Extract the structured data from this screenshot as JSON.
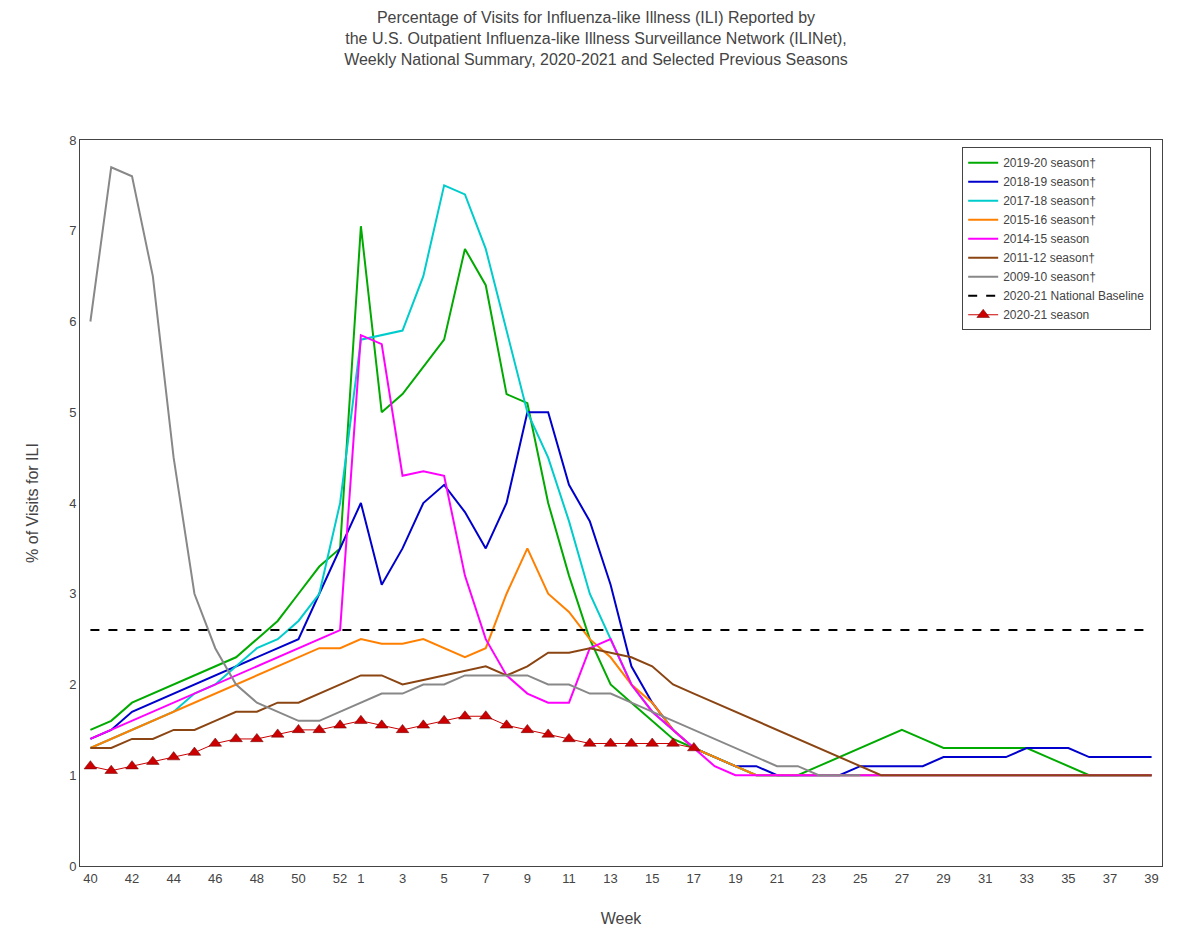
{
  "chart_data": {
    "type": "line",
    "title": "Percentage of Visits for Influenza-like Illness (ILI) Reported by\nthe U.S. Outpatient Influenza-like Illness Surveillance Network (ILINet),\nWeekly National Summary, 2020-2021 and Selected Previous Seasons",
    "x_label": "Week",
    "y_label": "% of Visits for ILI",
    "categories": [
      40,
      null,
      42,
      null,
      44,
      null,
      46,
      null,
      48,
      null,
      50,
      null,
      52,
      1,
      null,
      3,
      null,
      5,
      null,
      7,
      null,
      9,
      null,
      11,
      null,
      13,
      null,
      15,
      null,
      17,
      null,
      19,
      null,
      21,
      null,
      23,
      null,
      25,
      null,
      27,
      null,
      29,
      null,
      31,
      null,
      33,
      null,
      35,
      null,
      37,
      null,
      39
    ],
    "ylim": [
      0,
      8
    ],
    "yticks": [
      0,
      1,
      2,
      3,
      4,
      5,
      6,
      7,
      8
    ],
    "grid": false,
    "legend": "upper right",
    "series": [
      {
        "name": "2019-20 season†",
        "color": "#00AA00",
        "values": [
          1.5,
          1.6,
          1.8,
          1.9,
          2.0,
          2.1,
          2.2,
          2.3,
          2.5,
          2.7,
          3.0,
          3.3,
          3.5,
          7.05,
          5.0,
          5.2,
          5.5,
          5.8,
          6.8,
          6.4,
          5.2,
          5.1,
          4.0,
          3.2,
          2.5,
          2.0,
          1.8,
          1.6,
          1.4,
          1.3,
          1.2,
          1.1,
          1.0,
          1.0,
          1.0,
          1.1,
          1.2,
          1.3,
          1.4,
          1.5,
          1.4,
          1.3,
          1.3,
          1.3,
          1.3,
          1.3,
          1.2,
          1.1,
          1.0,
          1.0,
          1.0,
          1.0
        ]
      },
      {
        "name": "2018-19 season†",
        "color": "#0000CC",
        "values": [
          1.4,
          1.5,
          1.7,
          1.8,
          1.9,
          2.0,
          2.1,
          2.2,
          2.3,
          2.4,
          2.5,
          3.0,
          3.5,
          4.0,
          3.1,
          3.5,
          4.0,
          4.2,
          3.9,
          3.5,
          4.0,
          5.0,
          5.0,
          4.2,
          3.8,
          3.1,
          2.2,
          1.8,
          1.5,
          1.3,
          1.2,
          1.1,
          1.1,
          1.0,
          1.0,
          1.0,
          1.0,
          1.1,
          1.1,
          1.1,
          1.1,
          1.2,
          1.2,
          1.2,
          1.2,
          1.3,
          1.3,
          1.3,
          1.2,
          1.2,
          1.2,
          1.2
        ]
      },
      {
        "name": "2017-18 season†",
        "color": "#00CCCC",
        "values": [
          1.3,
          1.4,
          1.5,
          1.6,
          1.7,
          1.9,
          2.0,
          2.2,
          2.4,
          2.5,
          2.7,
          3.0,
          4.0,
          5.8,
          5.85,
          5.9,
          6.5,
          7.5,
          7.4,
          6.8,
          5.9,
          5.0,
          4.5,
          3.8,
          3.0,
          2.5,
          2.0,
          1.7,
          1.5,
          1.3,
          1.2,
          1.1,
          1.0,
          1.0,
          1.0,
          1.0,
          1.0,
          1.0,
          1.0,
          1.0,
          1.0,
          1.0,
          1.0,
          1.0,
          1.0,
          1.0,
          1.0,
          1.0,
          1.0,
          1.0,
          1.0,
          1.0
        ]
      },
      {
        "name": "2015-16 season†",
        "color": "#FF8000",
        "values": [
          1.3,
          1.4,
          1.5,
          1.6,
          1.7,
          1.8,
          1.9,
          2.0,
          2.1,
          2.2,
          2.3,
          2.4,
          2.4,
          2.5,
          2.45,
          2.45,
          2.5,
          2.4,
          2.3,
          2.4,
          3.0,
          3.5,
          3.0,
          2.8,
          2.5,
          2.3,
          2.0,
          1.8,
          1.5,
          1.3,
          1.2,
          1.1,
          1.0,
          1.0,
          1.0,
          1.0,
          1.0,
          1.0,
          1.0,
          1.0,
          1.0,
          1.0,
          1.0,
          1.0,
          1.0,
          1.0,
          1.0,
          1.0,
          1.0,
          1.0,
          1.0,
          1.0
        ]
      },
      {
        "name": "2014-15 season",
        "color": "#FF00FF",
        "values": [
          1.4,
          1.5,
          1.6,
          1.7,
          1.8,
          1.9,
          2.0,
          2.1,
          2.2,
          2.3,
          2.4,
          2.5,
          2.6,
          5.85,
          5.75,
          4.3,
          4.35,
          4.3,
          3.2,
          2.5,
          2.1,
          1.9,
          1.8,
          1.8,
          2.4,
          2.5,
          2.0,
          1.7,
          1.5,
          1.3,
          1.1,
          1.0,
          1.0,
          1.0,
          1.0,
          1.0,
          1.0,
          1.0,
          1.0,
          1.0,
          1.0,
          1.0,
          1.0,
          1.0,
          1.0,
          1.0,
          1.0,
          1.0,
          1.0,
          1.0,
          1.0,
          1.0
        ]
      },
      {
        "name": "2011-12 season†",
        "color": "#8B4513",
        "values": [
          1.3,
          1.3,
          1.4,
          1.4,
          1.5,
          1.5,
          1.6,
          1.7,
          1.7,
          1.8,
          1.8,
          1.9,
          2.0,
          2.1,
          2.1,
          2.0,
          2.05,
          2.1,
          2.15,
          2.2,
          2.1,
          2.2,
          2.35,
          2.35,
          2.4,
          2.35,
          2.3,
          2.2,
          2.0,
          1.9,
          1.8,
          1.7,
          1.6,
          1.5,
          1.4,
          1.3,
          1.2,
          1.1,
          1.0,
          1.0,
          1.0,
          1.0,
          1.0,
          1.0,
          1.0,
          1.0,
          1.0,
          1.0,
          1.0,
          1.0,
          1.0,
          1.0
        ]
      },
      {
        "name": "2009-10 season†",
        "color": "#888888",
        "values": [
          6.0,
          7.7,
          7.6,
          6.5,
          4.5,
          3.0,
          2.4,
          2.0,
          1.8,
          1.7,
          1.6,
          1.6,
          1.7,
          1.8,
          1.9,
          1.9,
          2.0,
          2.0,
          2.1,
          2.1,
          2.1,
          2.1,
          2.0,
          2.0,
          1.9,
          1.9,
          1.8,
          1.7,
          1.6,
          1.5,
          1.4,
          1.3,
          1.2,
          1.1,
          1.1,
          1.0,
          1.0,
          1.0,
          null,
          null,
          null,
          null,
          null,
          null,
          null,
          null,
          null,
          null,
          null,
          null,
          null,
          null
        ]
      },
      {
        "name": "2020-21 National Baseline",
        "color": "#000000",
        "line_style": "dashed",
        "values": [
          2.6,
          2.6,
          2.6,
          2.6,
          2.6,
          2.6,
          2.6,
          2.6,
          2.6,
          2.6,
          2.6,
          2.6,
          2.6,
          2.6,
          2.6,
          2.6,
          2.6,
          2.6,
          2.6,
          2.6,
          2.6,
          2.6,
          2.6,
          2.6,
          2.6,
          2.6,
          2.6,
          2.6,
          2.6,
          2.6,
          2.6,
          2.6,
          2.6,
          2.6,
          2.6,
          2.6,
          2.6,
          2.6,
          2.6,
          2.6,
          2.6,
          2.6,
          2.6,
          2.6,
          2.6,
          2.6,
          2.6,
          2.6,
          2.6,
          2.6,
          2.6,
          2.6
        ]
      },
      {
        "name": "2020-21 season",
        "color": "#CC0000",
        "marker": "triangle-up",
        "values": [
          1.1,
          1.05,
          1.1,
          1.15,
          1.2,
          1.25,
          1.35,
          1.4,
          1.4,
          1.45,
          1.5,
          1.5,
          1.55,
          1.6,
          1.55,
          1.5,
          1.55,
          1.6,
          1.65,
          1.65,
          1.55,
          1.5,
          1.45,
          1.4,
          1.35,
          1.35,
          1.35,
          1.35,
          1.35,
          1.3,
          null,
          null,
          null,
          null,
          null,
          null,
          null,
          null,
          null,
          null,
          null,
          null,
          null,
          null,
          null,
          null,
          null,
          null,
          null,
          null,
          null,
          null
        ]
      }
    ]
  }
}
